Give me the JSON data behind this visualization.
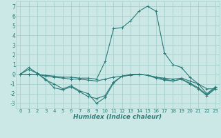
{
  "xlabel": "Humidex (Indice chaleur)",
  "background_color": "#cce8e6",
  "grid_color": "#a8d0ce",
  "line_color": "#2a7a77",
  "ylim": [
    -3.5,
    7.5
  ],
  "xlim": [
    -0.5,
    23.5
  ],
  "lines": [
    {
      "x": [
        0,
        1,
        2,
        3,
        4,
        5,
        6,
        7,
        8,
        9,
        10,
        11,
        12,
        13,
        14,
        15,
        16,
        17,
        18,
        19,
        20,
        21,
        22,
        23
      ],
      "y": [
        0,
        0.7,
        0.1,
        -0.6,
        -1.0,
        -1.5,
        -1.2,
        -1.7,
        -2.0,
        -3.0,
        -2.4,
        -0.9,
        -0.2,
        -0.1,
        0.0,
        -0.1,
        -0.4,
        -0.6,
        -0.7,
        -0.5,
        -1.0,
        -1.5,
        -2.2,
        -1.5
      ]
    },
    {
      "x": [
        0,
        1,
        2,
        3,
        4,
        5,
        6,
        7,
        8,
        9,
        10,
        11,
        12,
        13,
        14,
        15,
        16,
        17,
        18,
        19,
        20,
        21,
        22,
        23
      ],
      "y": [
        0,
        0.5,
        0.1,
        -0.5,
        -1.4,
        -1.6,
        -1.3,
        -1.8,
        -2.3,
        -2.5,
        -2.2,
        -0.8,
        -0.2,
        0.0,
        0.0,
        -0.1,
        -0.3,
        -0.5,
        -0.7,
        -0.5,
        -0.9,
        -1.4,
        -2.1,
        -1.4
      ]
    },
    {
      "x": [
        0,
        1,
        2,
        3,
        4,
        5,
        6,
        7,
        8,
        9,
        10,
        11,
        12,
        13,
        14,
        15,
        16,
        17,
        18,
        19,
        20,
        21,
        22,
        23
      ],
      "y": [
        0,
        0.0,
        0.0,
        -0.2,
        -0.3,
        -0.4,
        -0.5,
        -0.5,
        -0.6,
        -0.7,
        -0.5,
        -0.3,
        -0.2,
        -0.1,
        0.0,
        -0.1,
        -0.3,
        -0.4,
        -0.5,
        -0.4,
        -0.7,
        -1.0,
        -2.0,
        -1.3
      ]
    },
    {
      "x": [
        0,
        1,
        2,
        3,
        4,
        5,
        6,
        7,
        8,
        9,
        10,
        11,
        12,
        13,
        14,
        15,
        16,
        17,
        18,
        19,
        20,
        21,
        22,
        23
      ],
      "y": [
        0,
        0.0,
        0.0,
        -0.1,
        -0.2,
        -0.3,
        -0.3,
        -0.4,
        -0.4,
        -0.5,
        1.3,
        4.7,
        4.8,
        5.5,
        6.5,
        7.0,
        6.5,
        2.2,
        1.0,
        0.7,
        -0.3,
        -1.0,
        -1.5,
        -1.5
      ]
    }
  ],
  "yticks": [
    -3,
    -2,
    -1,
    0,
    1,
    2,
    3,
    4,
    5,
    6,
    7
  ],
  "xticks": [
    0,
    1,
    2,
    3,
    4,
    5,
    6,
    7,
    8,
    9,
    10,
    11,
    12,
    13,
    14,
    15,
    16,
    17,
    18,
    19,
    20,
    21,
    22,
    23
  ],
  "tick_fontsize": 5.0,
  "xlabel_fontsize": 6.5
}
